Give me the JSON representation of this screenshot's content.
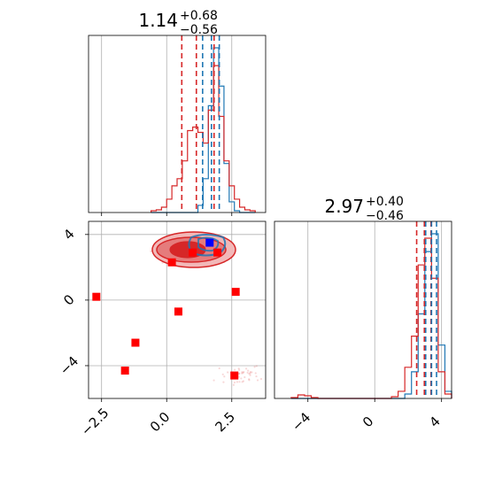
{
  "chart_data": {
    "type": "corner",
    "colors": {
      "red": "#d62728",
      "blue": "#1f77b4",
      "marker_red": "#ff0000",
      "marker_blue": "#0000ff",
      "grid": "#b0b0b0"
    },
    "param1": {
      "title_value": "1.14",
      "title_upper": "+0.68",
      "title_lower": "−0.56",
      "xlim": [
        -3.0,
        3.8
      ],
      "xticks": [
        -2.5,
        0.0,
        2.5
      ],
      "xtick_labels": [
        "−2.5",
        "0.0",
        "2.5"
      ],
      "red_quantiles": [
        0.58,
        1.14,
        1.82
      ],
      "blue_quantiles": [
        1.38,
        1.72,
        2.02
      ]
    },
    "param2": {
      "title_value": "2.97",
      "title_upper": "+0.40",
      "title_lower": "−0.46",
      "xlim": [
        -6.0,
        4.6
      ],
      "xticks": [
        -4,
        0,
        4
      ],
      "xtick_labels": [
        "−4",
        "0",
        "4"
      ],
      "red_quantiles": [
        2.51,
        2.97,
        3.37
      ],
      "blue_quantiles": [
        3.05,
        3.4,
        3.7
      ]
    },
    "scatter_2d": {
      "xlim": [
        -3.0,
        3.8
      ],
      "ylim": [
        -6.0,
        4.8
      ],
      "yticks": [
        -4,
        0,
        4
      ],
      "ytick_labels": [
        "−4",
        "0",
        "4"
      ],
      "red_markers": [
        {
          "x": -2.7,
          "y": 0.2
        },
        {
          "x": -1.6,
          "y": -4.3
        },
        {
          "x": -1.2,
          "y": -2.6
        },
        {
          "x": 0.2,
          "y": 2.3
        },
        {
          "x": 0.45,
          "y": -0.7
        },
        {
          "x": 1.0,
          "y": 2.9
        },
        {
          "x": 1.95,
          "y": 2.9
        },
        {
          "x": 2.6,
          "y": -4.6
        },
        {
          "x": 2.65,
          "y": 0.5
        }
      ],
      "blue_markers": [
        {
          "x": 1.65,
          "y": 3.5
        }
      ]
    },
    "hist1": {
      "bin_edges": [
        -0.6,
        -0.4,
        -0.2,
        0.0,
        0.2,
        0.4,
        0.6,
        0.8,
        1.0,
        1.2,
        1.4,
        1.6,
        1.8,
        2.0,
        2.2,
        2.4,
        2.6,
        2.8,
        3.0,
        3.2,
        3.4
      ],
      "red_counts": [
        2,
        3,
        6,
        15,
        30,
        38,
        58,
        92,
        96,
        90,
        78,
        115,
        165,
        108,
        58,
        30,
        15,
        6,
        3,
        2
      ],
      "blue_counts": [
        0,
        0,
        0,
        0,
        0,
        0,
        0,
        0,
        0,
        8,
        38,
        120,
        185,
        142,
        55,
        12,
        2,
        0,
        0,
        0
      ]
    },
    "hist2": {
      "bin_edges": [
        -5.0,
        -4.6,
        -4.2,
        -3.8,
        -3.4,
        1.0,
        1.4,
        1.8,
        2.2,
        2.6,
        3.0,
        3.4,
        3.8,
        4.2,
        4.6
      ],
      "red_counts": [
        1,
        4,
        3,
        1,
        0,
        2,
        8,
        35,
        70,
        150,
        180,
        135,
        30,
        5
      ],
      "blue_counts": [
        0,
        0,
        0,
        0,
        0,
        0,
        0,
        5,
        30,
        95,
        165,
        185,
        60,
        8
      ]
    }
  }
}
